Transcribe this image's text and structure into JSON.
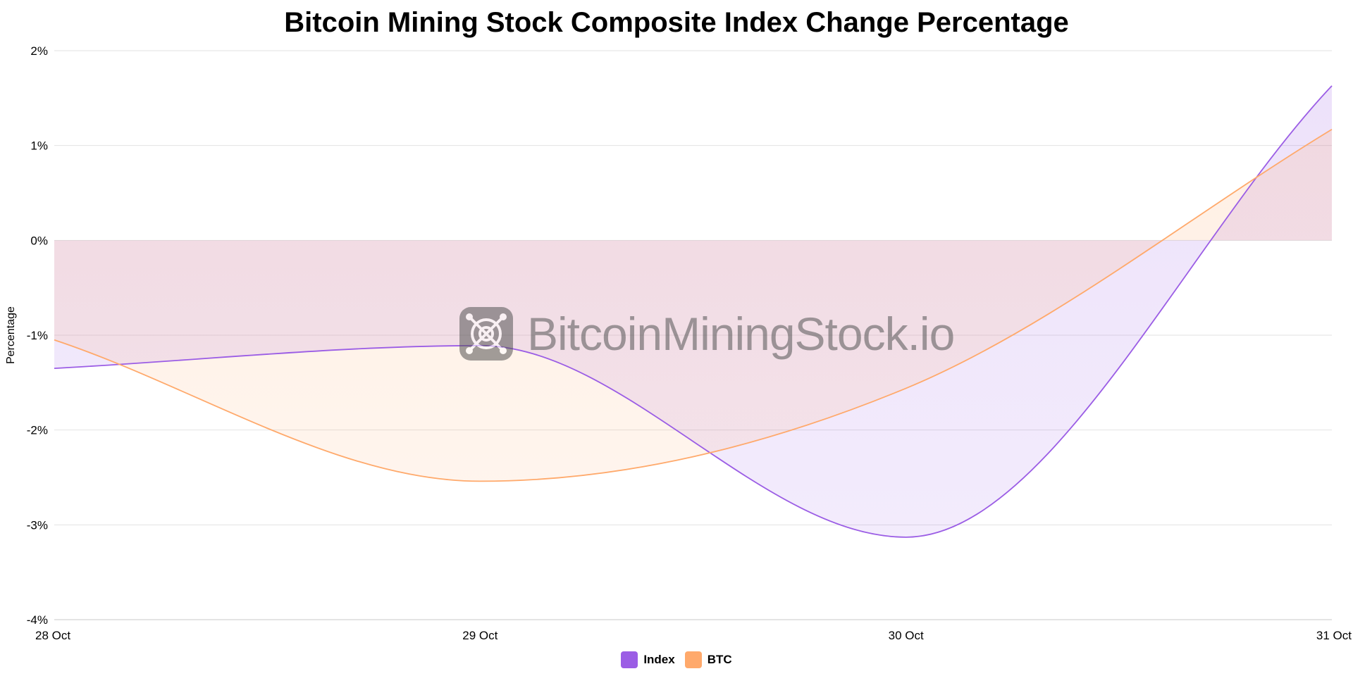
{
  "chart_data": {
    "type": "area",
    "title": "Bitcoin Mining Stock Composite Index Change Percentage",
    "xlabel": "",
    "ylabel": "Percentage",
    "categories": [
      "28 Oct",
      "29 Oct",
      "30 Oct",
      "31 Oct"
    ],
    "ylim": [
      -4,
      2
    ],
    "yticks": [
      2,
      1,
      0,
      -1,
      -2,
      -3,
      -4
    ],
    "ytick_labels": [
      "2%",
      "1%",
      "0%",
      "-1%",
      "-2%",
      "-3%",
      "-4%"
    ],
    "grid": true,
    "legend_position": "bottom",
    "series": [
      {
        "name": "Index",
        "values": [
          -1.35,
          -1.11,
          -3.13,
          1.63
        ],
        "color": "#9b5de5"
      },
      {
        "name": "BTC",
        "values": [
          -1.05,
          -2.54,
          -1.56,
          1.17
        ],
        "color": "#ffa96b"
      }
    ]
  },
  "watermark": "BitcoinMiningStock.io"
}
